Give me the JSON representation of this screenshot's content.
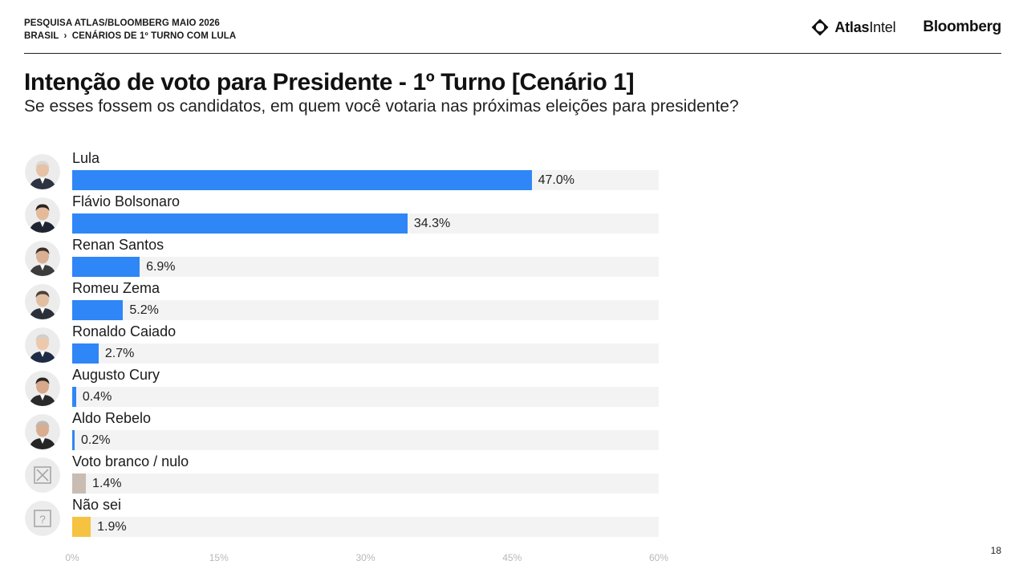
{
  "header": {
    "survey": "PESQUISA ATLAS/BLOOMBERG MAIO 2026",
    "crumb_country": "BRASIL",
    "crumb_sep": "›",
    "crumb_scenario": "CENÁRIOS DE 1º TURNO COM LULA",
    "brand_atlas_bold": "Atlas",
    "brand_atlas_light": "Intel",
    "brand_bloomberg": "Bloomberg"
  },
  "page_number": "18",
  "chart_data": {
    "type": "bar",
    "orientation": "horizontal",
    "title": "Intenção de voto para Presidente - 1º Turno [Cenário 1]",
    "subtitle": "Se esses fossem os candidatos, em quem você votaria nas próximas eleições para presidente?",
    "categories": [
      "Lula",
      "Flávio Bolsonaro",
      "Renan Santos",
      "Romeu Zema",
      "Ronaldo Caiado",
      "Augusto Cury",
      "Aldo Rebelo",
      "Voto branco / nulo",
      "Não sei"
    ],
    "values": [
      47.0,
      34.3,
      6.9,
      5.2,
      2.7,
      0.4,
      0.2,
      1.4,
      1.9
    ],
    "value_labels": [
      "47.0%",
      "34.3%",
      "6.9%",
      "5.2%",
      "2.7%",
      "0.4%",
      "0.2%",
      "1.4%",
      "1.9%"
    ],
    "colors": [
      "#2f86f6",
      "#2f86f6",
      "#2f86f6",
      "#2f86f6",
      "#2f86f6",
      "#2f86f6",
      "#2f86f6",
      "#c8bcb3",
      "#f5c242"
    ],
    "avatar_icons": [
      "person-photo",
      "person-photo",
      "person-photo",
      "person-photo",
      "person-photo",
      "person-photo",
      "person-photo",
      "x-box-icon",
      "question-box-icon"
    ],
    "xlim": [
      0,
      60
    ],
    "xticks": [
      "0%",
      "15%",
      "30%",
      "45%",
      "60%"
    ],
    "xtick_values": [
      0,
      15,
      30,
      45,
      60
    ],
    "grid": false,
    "track_color": "#f3f3f3"
  }
}
